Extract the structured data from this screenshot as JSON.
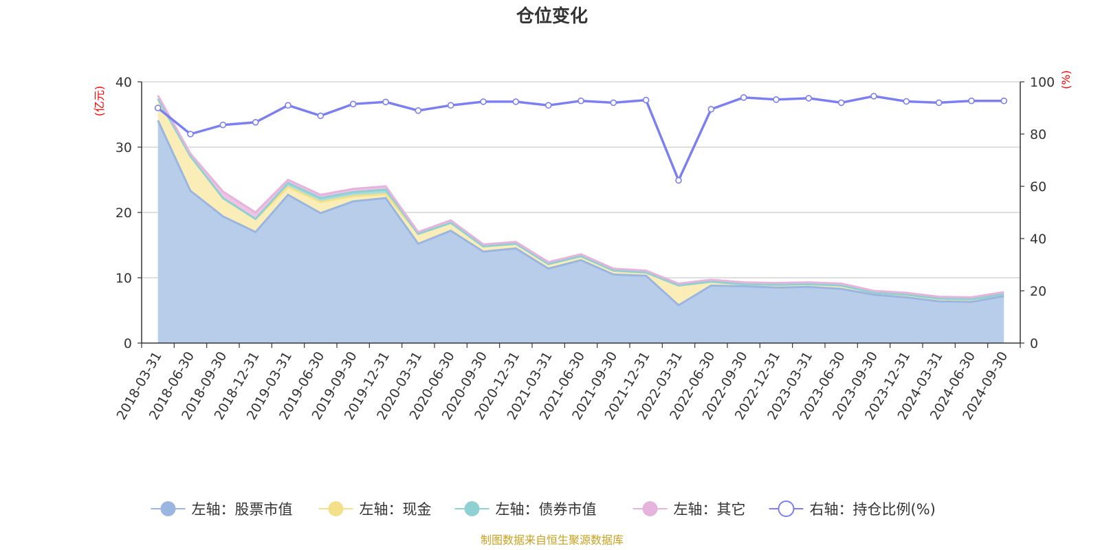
{
  "chart_data": {
    "type": "area",
    "title": "仓位变化",
    "source_note": "制图数据来自恒生聚源数据库",
    "y_left": {
      "unit": "(亿元)",
      "lim": [
        0,
        40
      ],
      "ticks": [
        0,
        10,
        20,
        30,
        40
      ]
    },
    "y_right": {
      "unit": "(%)",
      "lim": [
        0,
        100
      ],
      "ticks": [
        0,
        20,
        40,
        60,
        80,
        100
      ]
    },
    "categories": [
      "2018-03-31",
      "2018-06-30",
      "2018-09-30",
      "2018-12-31",
      "2019-03-31",
      "2019-06-30",
      "2019-09-30",
      "2019-12-31",
      "2020-03-31",
      "2020-06-30",
      "2020-09-30",
      "2020-12-31",
      "2021-03-31",
      "2021-06-30",
      "2021-09-30",
      "2021-12-31",
      "2022-03-31",
      "2022-06-30",
      "2022-09-30",
      "2022-12-31",
      "2023-03-31",
      "2023-06-30",
      "2023-09-30",
      "2023-12-31",
      "2024-03-31",
      "2024-06-30",
      "2024-09-30"
    ],
    "grid": true,
    "legend_position": "bottom",
    "series": [
      {
        "name": "左轴：股票市值",
        "axis": "left",
        "kind": "stacked-area",
        "color": "#9ab6e0",
        "fill": "#b8cdea",
        "values": [
          34.1,
          23.3,
          19.4,
          17.0,
          22.7,
          19.9,
          21.7,
          22.2,
          15.2,
          17.2,
          14.0,
          14.5,
          11.4,
          12.7,
          10.5,
          10.3,
          5.8,
          8.8,
          8.7,
          8.5,
          8.6,
          8.3,
          7.4,
          7.0,
          6.4,
          6.3,
          7.2
        ]
      },
      {
        "name": "左轴：现金",
        "axis": "left",
        "kind": "stacked-area",
        "color": "#f5e08a",
        "fill": "#fbedb8",
        "values": [
          3.3,
          5.3,
          2.8,
          2.0,
          1.2,
          1.7,
          0.8,
          0.6,
          1.5,
          1.2,
          0.8,
          0.7,
          0.7,
          0.6,
          0.6,
          0.5,
          3.0,
          0.6,
          0.3,
          0.4,
          0.4,
          0.5,
          0.3,
          0.4,
          0.4,
          0.4,
          0.3
        ]
      },
      {
        "name": "左轴：债券市值",
        "axis": "left",
        "kind": "stacked-area",
        "color": "#8fd0d3",
        "fill": "#a9dcdd",
        "values": [
          0,
          0,
          0,
          0,
          0.6,
          0.6,
          0.6,
          0.7,
          0,
          0,
          0,
          0,
          0,
          0,
          0,
          0,
          0,
          0,
          0,
          0,
          0,
          0,
          0,
          0,
          0,
          0,
          0
        ]
      },
      {
        "name": "左轴：其它",
        "axis": "left",
        "kind": "stacked-area",
        "color": "#e6b3dc",
        "fill": "#eec3e4",
        "values": [
          0.5,
          0.4,
          1.0,
          1.0,
          0.5,
          0.5,
          0.5,
          0.5,
          0.3,
          0.4,
          0.3,
          0.3,
          0.3,
          0.3,
          0.3,
          0.3,
          0.3,
          0.3,
          0.3,
          0.3,
          0.3,
          0.3,
          0.3,
          0.3,
          0.3,
          0.3,
          0.3
        ]
      },
      {
        "name": "右轴：持仓比例(%)",
        "axis": "right",
        "kind": "line",
        "color": "#7b7ff0",
        "values": [
          90.0,
          80.0,
          83.5,
          84.5,
          91.0,
          87.0,
          91.5,
          92.3,
          89.0,
          91.0,
          92.4,
          92.4,
          91.0,
          92.7,
          92.0,
          93.0,
          62.3,
          89.5,
          94.0,
          93.2,
          93.7,
          92.0,
          94.5,
          92.5,
          92.0,
          92.7,
          92.7
        ]
      }
    ]
  }
}
